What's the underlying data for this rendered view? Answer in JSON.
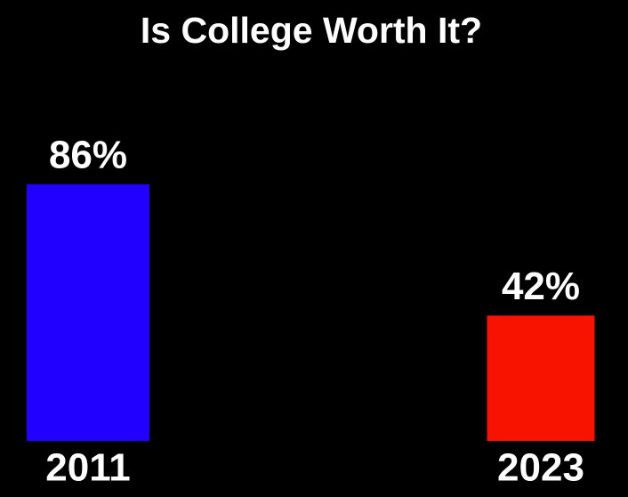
{
  "chart_data": {
    "type": "bar",
    "title": "Is College Worth It?",
    "categories": [
      "2011",
      "2023"
    ],
    "values": [
      86,
      42
    ],
    "value_labels": [
      "86%",
      "42%"
    ],
    "colors": [
      "#2200ff",
      "#f81200"
    ],
    "ylim": [
      0,
      100
    ]
  }
}
